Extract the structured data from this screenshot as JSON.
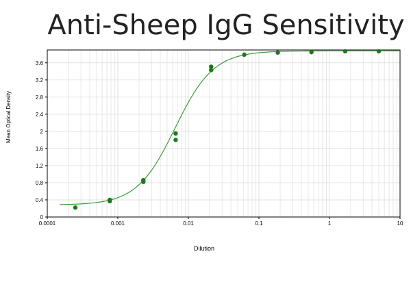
{
  "chart_data": {
    "type": "scatter",
    "title": "Anti-Sheep IgG Sensitivity",
    "xlabel": "Dilution",
    "ylabel": "Mean Optical Density",
    "x_scale": "log",
    "xlim": [
      0.0001,
      10
    ],
    "ylim": [
      0,
      3.9
    ],
    "x_tick_labels": [
      "0.0001",
      "0.001",
      "0.01",
      "0.1",
      "1",
      "10"
    ],
    "y_tick_labels": [
      "0",
      "0.4",
      "0.8",
      "1.2",
      "1.6",
      "2",
      "2.4",
      "2.8",
      "3.2",
      "3.6"
    ],
    "grid": true,
    "colors": {
      "series": "#1a7a1a",
      "curve": "#3b9a3b",
      "grid": "#d8d8d8"
    },
    "points": [
      {
        "x": 0.00025,
        "y": 0.22
      },
      {
        "x": 0.00077,
        "y": 0.37
      },
      {
        "x": 0.00077,
        "y": 0.4
      },
      {
        "x": 0.0023,
        "y": 0.82
      },
      {
        "x": 0.0023,
        "y": 0.86
      },
      {
        "x": 0.0066,
        "y": 1.8
      },
      {
        "x": 0.0066,
        "y": 1.95
      },
      {
        "x": 0.021,
        "y": 3.43
      },
      {
        "x": 0.021,
        "y": 3.51
      },
      {
        "x": 0.062,
        "y": 3.79
      },
      {
        "x": 0.185,
        "y": 3.84
      },
      {
        "x": 0.555,
        "y": 3.85
      },
      {
        "x": 1.67,
        "y": 3.87
      },
      {
        "x": 5.0,
        "y": 3.87
      }
    ],
    "fit_curve": {
      "model": "4PL",
      "bottom": 0.28,
      "top": 3.88,
      "ec50": 0.0065,
      "hill": 1.6
    }
  }
}
